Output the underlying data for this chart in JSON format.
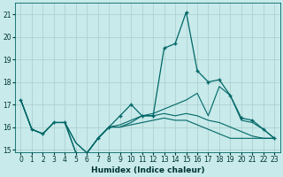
{
  "xlabel": "Humidex (Indice chaleur)",
  "background_color": "#c8eaea",
  "grid_color": "#b0d0d0",
  "line_color": "#006666",
  "xlim": [
    -0.5,
    23.5
  ],
  "ylim": [
    14.9,
    21.5
  ],
  "yticks": [
    15,
    16,
    17,
    18,
    19,
    20,
    21
  ],
  "xticks": [
    0,
    1,
    2,
    3,
    4,
    5,
    6,
    7,
    8,
    9,
    10,
    11,
    12,
    13,
    14,
    15,
    16,
    17,
    18,
    19,
    20,
    21,
    22,
    23
  ],
  "series": [
    {
      "y": [
        17.2,
        15.9,
        15.7,
        16.2,
        16.2,
        14.85,
        14.85,
        15.5,
        16.0,
        16.5,
        17.0,
        16.5,
        16.5,
        19.5,
        19.7,
        21.1,
        18.5,
        18.0,
        18.1,
        17.4,
        16.4,
        16.3,
        15.9,
        15.5
      ],
      "marker": true
    },
    {
      "y": [
        17.2,
        15.9,
        15.7,
        16.2,
        16.2,
        14.85,
        14.85,
        15.5,
        16.0,
        16.0,
        16.2,
        16.5,
        16.6,
        16.8,
        17.0,
        17.2,
        17.5,
        16.5,
        17.8,
        17.4,
        16.3,
        16.2,
        15.9,
        15.5
      ],
      "marker": false
    },
    {
      "y": [
        17.2,
        15.9,
        15.7,
        16.2,
        16.2,
        15.3,
        14.85,
        15.5,
        16.0,
        16.1,
        16.3,
        16.5,
        16.5,
        16.6,
        16.5,
        16.6,
        16.5,
        16.3,
        16.2,
        16.0,
        15.8,
        15.6,
        15.5,
        15.5
      ],
      "marker": false
    },
    {
      "y": [
        17.2,
        15.9,
        15.7,
        16.2,
        16.2,
        15.3,
        14.85,
        15.5,
        16.0,
        16.0,
        16.1,
        16.2,
        16.3,
        16.4,
        16.3,
        16.3,
        16.1,
        15.9,
        15.7,
        15.5,
        15.5,
        15.5,
        15.5,
        15.5
      ],
      "marker": false
    }
  ]
}
